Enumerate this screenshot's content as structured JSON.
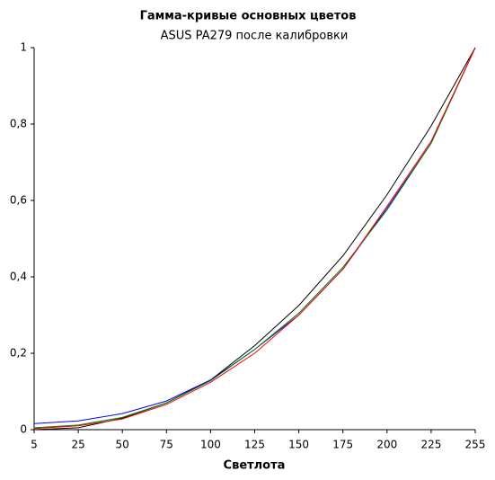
{
  "chart_data": {
    "type": "line",
    "title": "Гамма-кривые  основных цветов",
    "subtitle": "ASUS PA279 после калибровки",
    "x_label": "Светлота",
    "categories": [
      "5",
      "25",
      "50",
      "75",
      "100",
      "125",
      "150",
      "175",
      "200",
      "225",
      "255"
    ],
    "series": [
      {
        "color": "#000000",
        "values": [
          0.0,
          0.005,
          0.03,
          0.07,
          0.13,
          0.22,
          0.325,
          0.455,
          0.615,
          0.795,
          1
        ]
      },
      {
        "color": "#0000ff",
        "values": [
          0.016,
          0.023,
          0.042,
          0.075,
          0.13,
          0.21,
          0.3,
          0.42,
          0.58,
          0.75,
          1
        ]
      },
      {
        "color": "#008000",
        "values": [
          0.005,
          0.012,
          0.032,
          0.07,
          0.128,
          0.21,
          0.305,
          0.425,
          0.575,
          0.75,
          1
        ]
      },
      {
        "color": "#ff0000",
        "values": [
          0.003,
          0.01,
          0.028,
          0.066,
          0.124,
          0.2,
          0.3,
          0.42,
          0.585,
          0.755,
          1
        ]
      }
    ],
    "ylim": [
      0,
      1
    ],
    "yticks": [
      0,
      {
        "value": 0.2,
        "label": "0,2"
      },
      {
        "value": 0.4,
        "label": "0,4"
      },
      {
        "value": 0.6,
        "label": "0,6"
      },
      {
        "value": 0.8,
        "label": "0,8"
      },
      1
    ],
    "grid": false
  }
}
